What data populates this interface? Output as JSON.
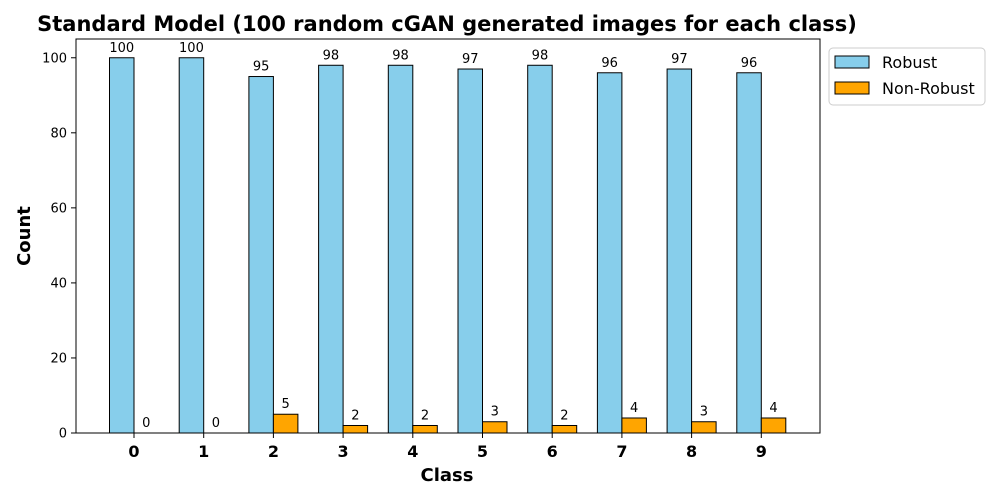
{
  "chart_data": {
    "type": "bar",
    "title": "Standard Model (100 random cGAN generated images for each class)",
    "xlabel": "Class",
    "ylabel": "Count",
    "categories": [
      "0",
      "1",
      "2",
      "3",
      "4",
      "5",
      "6",
      "7",
      "8",
      "9"
    ],
    "series": [
      {
        "name": "Robust",
        "color": "#87ceeb",
        "values": [
          100,
          100,
          95,
          98,
          98,
          97,
          98,
          96,
          97,
          96
        ]
      },
      {
        "name": "Non-Robust",
        "color": "#ffa500",
        "values": [
          0,
          0,
          5,
          2,
          2,
          3,
          2,
          4,
          3,
          4
        ]
      }
    ],
    "ylim": [
      0,
      105
    ],
    "yticks": [
      0,
      20,
      40,
      60,
      80,
      100
    ],
    "grid": false,
    "legend": "upper-right-outside"
  }
}
